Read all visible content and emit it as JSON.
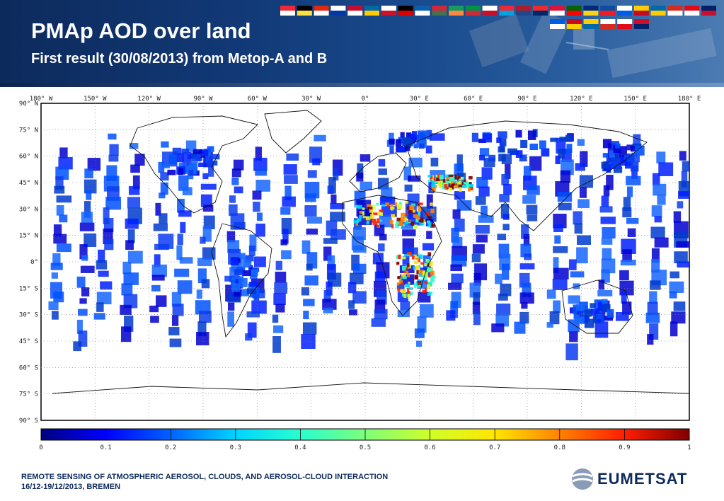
{
  "header": {
    "title": "PMAp AOD over land",
    "subtitle": "First result (30/08/2013) from Metop-A and B"
  },
  "map": {
    "lon_labels": [
      "180° W",
      "150° W",
      "120° W",
      "90° W",
      "60° W",
      "30° W",
      "0°",
      "30° E",
      "60° E",
      "90° E",
      "120° E",
      "150° E",
      "180° E"
    ],
    "lat_labels": [
      "90° N",
      "75° N",
      "60° N",
      "45° N",
      "30° N",
      "15° N",
      "0°",
      "15° S",
      "30° S",
      "45° S",
      "60° S",
      "75° S",
      "90° S"
    ]
  },
  "colorbar": {
    "ticks": [
      "0",
      "0.1",
      "0.2",
      "0.3",
      "0.4",
      "0.5",
      "0.6",
      "0.7",
      "0.8",
      "0.9",
      "1"
    ],
    "colors": [
      "#00007f",
      "#0000ff",
      "#0063ff",
      "#00d4ff",
      "#29ffce",
      "#7dff7a",
      "#ceff29",
      "#ffe600",
      "#ff8200",
      "#ff1e00",
      "#7f0000"
    ]
  },
  "footer": {
    "line1": "REMOTE SENSING OF ATMOSPHERIC AEROSOL, CLOUDS, AND AEROSOL-CLOUD INTERACTION",
    "line2": "16/12-19/12/2013, BREMEN"
  },
  "logo": {
    "text": "EUMETSAT"
  },
  "theme": {
    "header_bg": "#123a78",
    "footer_text": "#0d2a5c"
  }
}
